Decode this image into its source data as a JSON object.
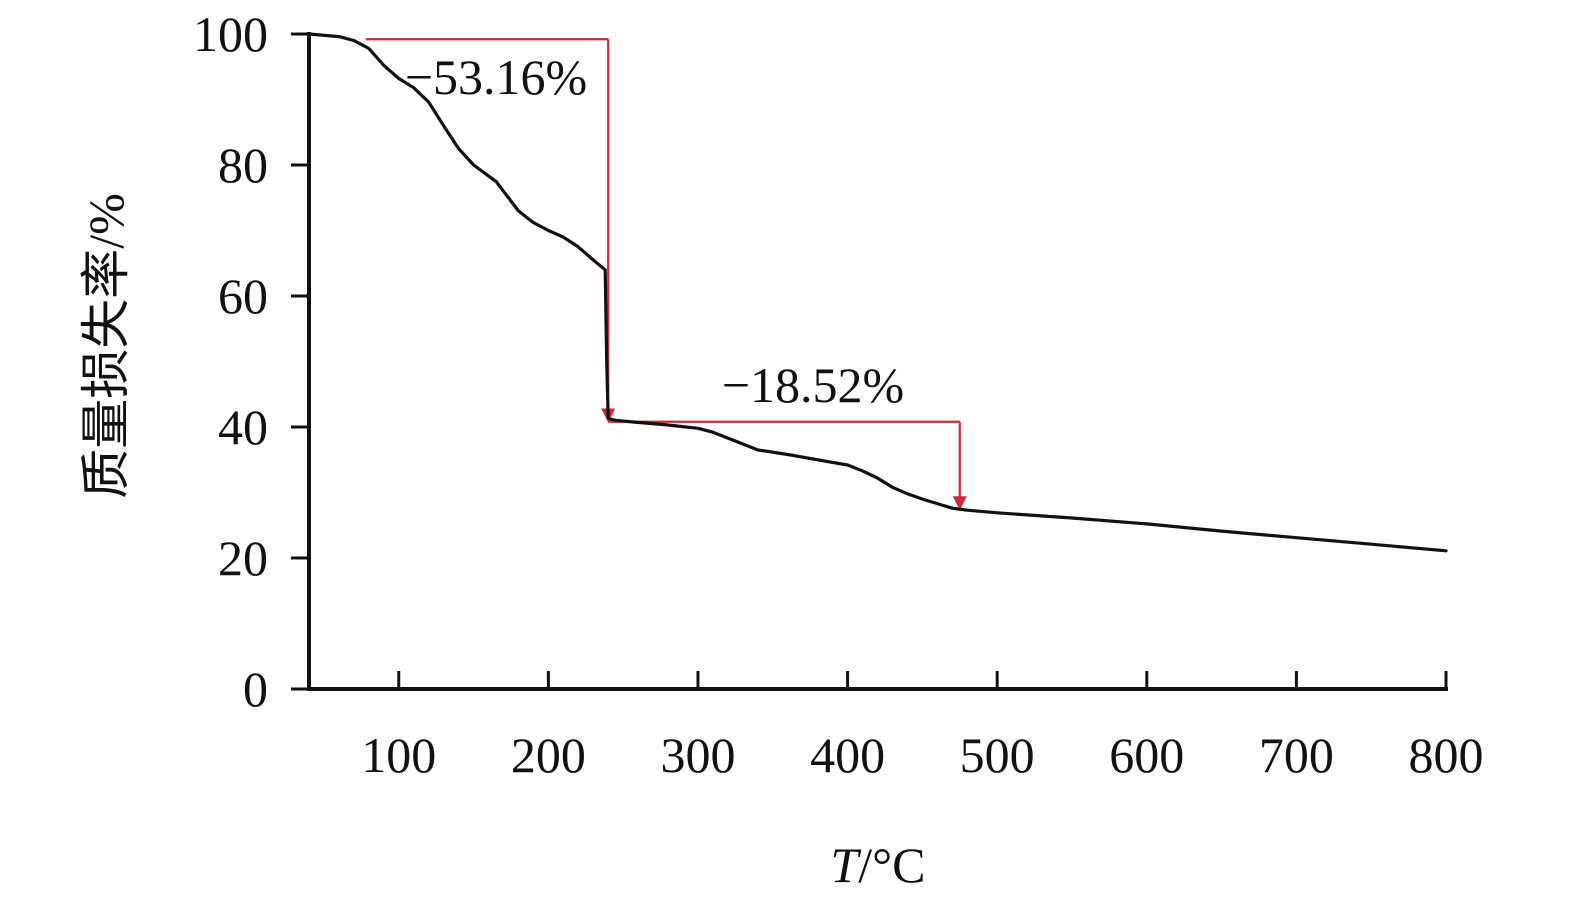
{
  "chart_data": {
    "type": "line",
    "xlabel": "T/°C",
    "ylabel": "质量损失率/%",
    "xlim": [
      40,
      800
    ],
    "ylim": [
      0,
      100
    ],
    "x_ticks": [
      100,
      200,
      300,
      400,
      500,
      600,
      700,
      800
    ],
    "y_ticks": [
      0,
      20,
      40,
      60,
      80,
      100
    ],
    "grid": false,
    "series": [
      {
        "color": "#111111",
        "x": [
          40,
          60,
          70,
          80,
          90,
          100,
          110,
          120,
          130,
          140,
          150,
          165,
          180,
          190,
          200,
          210,
          220,
          230,
          238,
          239,
          240,
          245,
          260,
          280,
          300,
          310,
          320,
          340,
          360,
          380,
          400,
          410,
          420,
          430,
          440,
          450,
          460,
          470,
          480,
          500,
          550,
          600,
          650,
          700,
          750,
          800
        ],
        "y": [
          100,
          99.6,
          99.0,
          97.8,
          95.2,
          93.2,
          91.8,
          89.6,
          86.0,
          82.5,
          80.0,
          77.5,
          73.0,
          71.2,
          70.0,
          69.0,
          67.5,
          65.5,
          64.0,
          50.0,
          41.3,
          41.0,
          40.7,
          40.3,
          39.8,
          39.2,
          38.3,
          36.5,
          35.8,
          35.0,
          34.2,
          33.3,
          32.2,
          30.8,
          29.8,
          29.0,
          28.3,
          27.6,
          27.3,
          26.9,
          26.1,
          25.2,
          24.1,
          23.1,
          22.1,
          21.1
        ]
      }
    ],
    "annotations": [
      {
        "text": "−53.16%",
        "color": "#cc2a36",
        "from_x": 78,
        "to_x": 240,
        "level_y": 99.2,
        "arrow_to_y": 41.0
      },
      {
        "text": "−18.52%",
        "color": "#cc2a36",
        "from_x": 240,
        "to_x": 475,
        "level_y": 40.8,
        "arrow_to_y": 27.6
      }
    ]
  }
}
